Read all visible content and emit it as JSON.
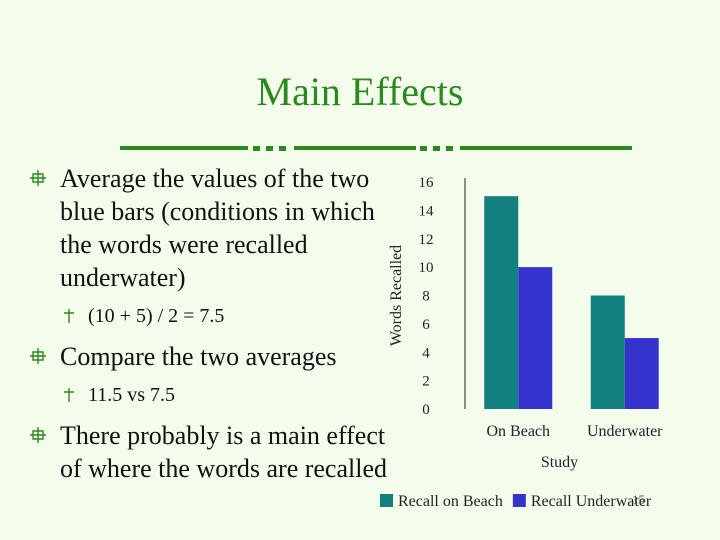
{
  "slide": {
    "title": "Main Effects",
    "bullets": [
      {
        "text": "Average the values of the two blue bars (conditions in which the words were recalled underwater)",
        "sub": [
          "(10 + 5) / 2 = 7.5"
        ]
      },
      {
        "text": "Compare the two averages",
        "sub": [
          "11.5 vs 7.5"
        ]
      },
      {
        "text": "There probably is a main effect of where the words are recalled",
        "sub": []
      }
    ],
    "page_number": "15"
  },
  "colors": {
    "title": "#2a8a1f",
    "background": "#f4fdec",
    "bullet_marker": "#2a8a1f",
    "series_beach": "#138080",
    "series_underwater": "#3434cc"
  },
  "chart_data": {
    "type": "bar",
    "categories": [
      "On Beach",
      "Underwater"
    ],
    "series": [
      {
        "name": "Recall on Beach",
        "values": [
          15,
          8
        ]
      },
      {
        "name": "Recall Underwater",
        "values": [
          10,
          5
        ]
      }
    ],
    "xlabel": "Study",
    "ylabel": "Words Recalled",
    "ylim": [
      0,
      16
    ],
    "yticks": [
      0,
      2,
      4,
      6,
      8,
      10,
      12,
      14,
      16
    ],
    "grid": false,
    "legend": "bottom"
  }
}
